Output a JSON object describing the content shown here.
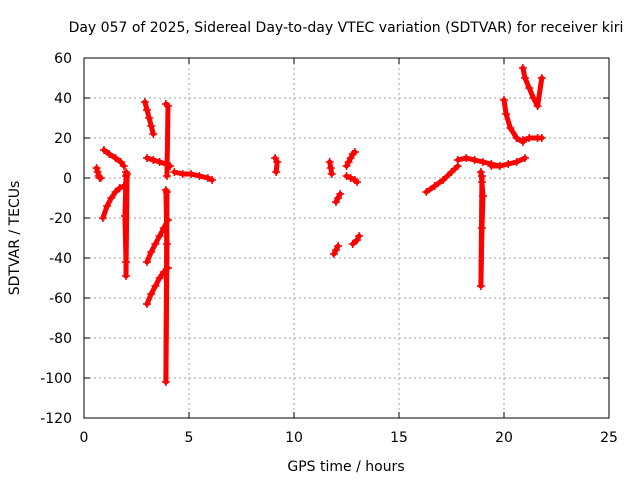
{
  "chart_data": {
    "type": "scatter",
    "title": "Day 057 of 2025, Sidereal Day-to-day VTEC variation (SDTVAR) for receiver kiri",
    "xlabel": "GPS time / hours",
    "ylabel": "SDTVAR / TECUs",
    "xlim": [
      0,
      25
    ],
    "ylim": [
      -120,
      60
    ],
    "xticks": [
      "0",
      "5",
      "10",
      "15",
      "20",
      "25"
    ],
    "yticks": [
      "-120",
      "-100",
      "-80",
      "-60",
      "-40",
      "-20",
      "0",
      "20",
      "40",
      "60"
    ],
    "grid": true,
    "legend": "none",
    "marker": "+",
    "color": "#ff0000",
    "series": [
      {
        "x": [
          0.6,
          0.65,
          0.7,
          0.75,
          0.8
        ],
        "y": [
          5,
          3,
          1,
          0,
          0
        ]
      },
      {
        "x": [
          0.95,
          1.2,
          1.5,
          1.75,
          1.9
        ],
        "y": [
          14,
          12,
          10,
          8,
          6
        ]
      },
      {
        "x": [
          0.9,
          1.1,
          1.3,
          1.5,
          1.7,
          1.9
        ],
        "y": [
          -20,
          -14,
          -10,
          -7,
          -5,
          -4
        ]
      },
      {
        "x": [
          2.0,
          2.0,
          1.95,
          2.0,
          2.0,
          2.05
        ],
        "y": [
          3,
          1,
          -19,
          -42,
          -49,
          2
        ]
      },
      {
        "x": [
          2.9,
          3.0,
          3.1,
          3.2,
          3.3
        ],
        "y": [
          38,
          34,
          30,
          26,
          22
        ]
      },
      {
        "x": [
          3.0,
          3.3,
          3.6,
          3.9,
          4.1
        ],
        "y": [
          10,
          9,
          8,
          7,
          6
        ]
      },
      {
        "x": [
          3.9,
          4.0,
          3.95
        ],
        "y": [
          37,
          36,
          1
        ]
      },
      {
        "x": [
          3.0,
          3.2,
          3.4,
          3.6,
          3.8,
          4.0
        ],
        "y": [
          -42,
          -37,
          -33,
          -29,
          -25,
          -21
        ]
      },
      {
        "x": [
          3.0,
          3.2,
          3.4,
          3.6,
          3.8,
          4.0
        ],
        "y": [
          -63,
          -58,
          -54,
          -50,
          -47,
          -45
        ]
      },
      {
        "x": [
          3.9,
          3.95,
          3.9,
          3.95
        ],
        "y": [
          -6,
          -33,
          -102,
          -7
        ]
      },
      {
        "x": [
          4.3,
          4.7,
          5.1,
          5.5,
          5.9,
          6.1
        ],
        "y": [
          3,
          2,
          2,
          1,
          0,
          -1
        ]
      },
      {
        "x": [
          9.1,
          9.2,
          9.15
        ],
        "y": [
          10,
          8,
          3
        ]
      },
      {
        "x": [
          11.7,
          11.75,
          11.8
        ],
        "y": [
          8,
          5,
          2
        ]
      },
      {
        "x": [
          12.0,
          12.1,
          12.2
        ],
        "y": [
          -12,
          -10,
          -8
        ]
      },
      {
        "x": [
          11.9,
          12.0,
          12.1
        ],
        "y": [
          -38,
          -36,
          -34
        ]
      },
      {
        "x": [
          12.5,
          12.6,
          12.7,
          12.8,
          12.9
        ],
        "y": [
          6,
          8,
          10,
          12,
          13
        ]
      },
      {
        "x": [
          12.5,
          12.7,
          12.9,
          13.0
        ],
        "y": [
          1,
          0,
          -1,
          -2
        ]
      },
      {
        "x": [
          12.8,
          13.0,
          13.1
        ],
        "y": [
          -33,
          -31,
          -29
        ]
      },
      {
        "x": [
          16.3,
          16.7,
          17.1,
          17.5,
          17.8
        ],
        "y": [
          -7,
          -4,
          -1,
          3,
          6
        ]
      },
      {
        "x": [
          17.8,
          18.2,
          18.6,
          19.0,
          19.4,
          19.8
        ],
        "y": [
          9,
          10,
          9,
          8,
          7,
          6
        ]
      },
      {
        "x": [
          19.4,
          19.8,
          20.2,
          20.6,
          21.0
        ],
        "y": [
          6,
          6,
          7,
          8,
          10
        ]
      },
      {
        "x": [
          18.9,
          18.95,
          19.0,
          18.95,
          18.9,
          18.95
        ],
        "y": [
          3,
          -2,
          -9,
          -25,
          -54,
          1
        ]
      },
      {
        "x": [
          20.0,
          20.1,
          20.3,
          20.6,
          20.9
        ],
        "y": [
          39,
          32,
          25,
          20,
          18
        ]
      },
      {
        "x": [
          20.9,
          21.2,
          21.6,
          21.8
        ],
        "y": [
          19,
          20,
          20,
          20
        ]
      },
      {
        "x": [
          20.9,
          21.0,
          21.2,
          21.4,
          21.6,
          21.8
        ],
        "y": [
          55,
          50,
          45,
          40,
          36,
          50
        ]
      }
    ]
  }
}
